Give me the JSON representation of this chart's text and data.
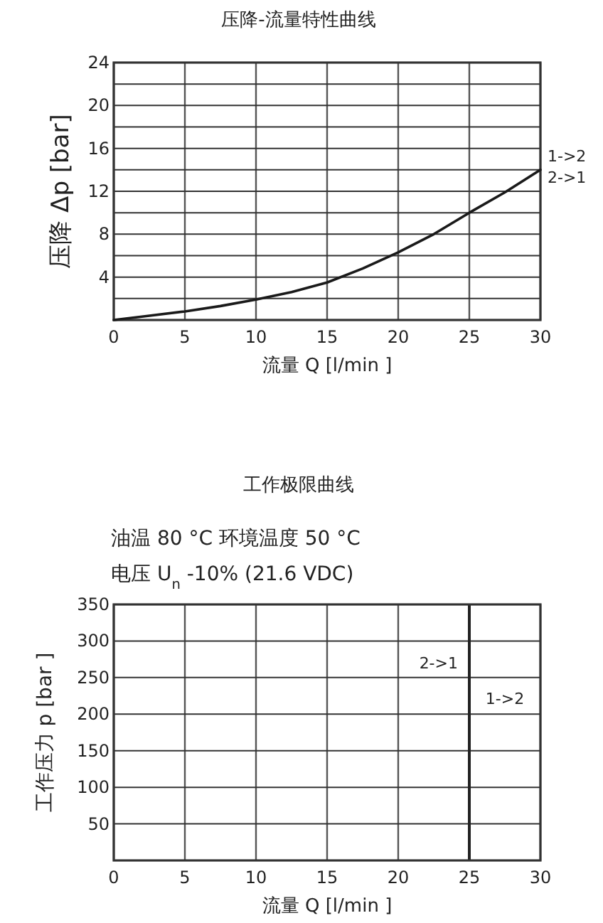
{
  "chart_data": [
    {
      "type": "line",
      "title": "压降-流量特性曲线",
      "xlabel": "流量 Q [l/min ]",
      "ylabel": "压降 Δp [bar]",
      "x": [
        0,
        2.5,
        5,
        7.5,
        10,
        12.5,
        15,
        17.5,
        20,
        22.5,
        25,
        27.5,
        30
      ],
      "series": [
        {
          "color": "#1a1a1a",
          "values": [
            0,
            0.4,
            0.8,
            1.3,
            1.9,
            2.6,
            3.5,
            4.8,
            6.3,
            8,
            10,
            11.9,
            14
          ]
        }
      ],
      "xlim": [
        0,
        30
      ],
      "xticks": [
        0,
        5,
        10,
        15,
        20,
        25,
        30
      ],
      "ylim": [
        0,
        24
      ],
      "yticks": [
        {
          "value": 2,
          "label": null
        },
        4,
        {
          "value": 6,
          "label": null
        },
        8,
        {
          "value": 10,
          "label": null
        },
        12,
        {
          "value": 14,
          "label": null
        },
        16,
        {
          "value": 18,
          "label": null
        },
        20,
        {
          "value": 22,
          "label": null
        },
        24
      ],
      "grid": true,
      "marker": "none",
      "line_style": "solid",
      "annotations": [
        "1->2",
        "2->1"
      ]
    },
    {
      "type": "line",
      "title": "工作极限曲线",
      "subtitle": "油温 80 °C   环境温度 50 °C",
      "xlabel": "流量 Q [l/min ]",
      "ylabel": "工作压力 p [bar ]",
      "xlim": [
        0,
        30
      ],
      "xticks": [
        0,
        5,
        10,
        15,
        20,
        25,
        30
      ],
      "ylim": [
        0,
        350
      ],
      "yticks": [
        50,
        100,
        150,
        200,
        250,
        300,
        350
      ],
      "grid": true,
      "ref_lines": [
        {
          "axis": "x",
          "value": 25,
          "color": "#222222"
        }
      ],
      "annotations": [
        "电压 U$_{n}$ -10% (21.6 VDC)",
        "2->1",
        "1->2"
      ]
    }
  ]
}
